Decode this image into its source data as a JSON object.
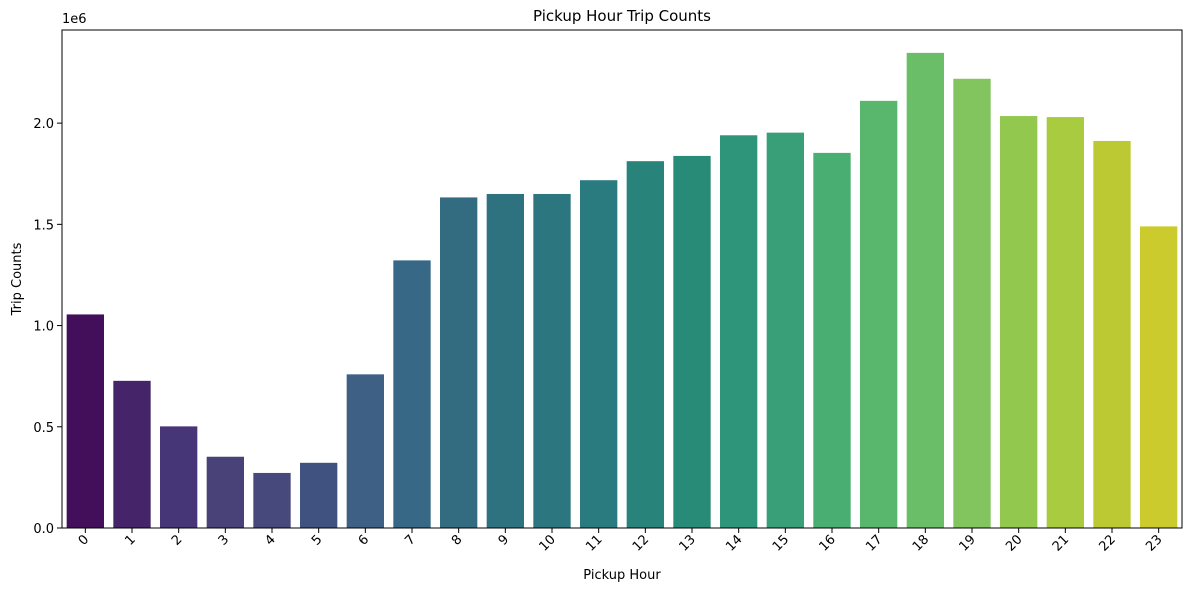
{
  "chart_data": {
    "type": "bar",
    "title": "Pickup Hour Trip Counts",
    "xlabel": "Pickup Hour",
    "ylabel": "Trip Counts",
    "y_offset_label": "1e6",
    "ylim": [
      0,
      2.46
    ],
    "yticks": [
      "0.0",
      "0.5",
      "1.0",
      "1.5",
      "2.0"
    ],
    "ytick_values": [
      0,
      0.5,
      1.0,
      1.5,
      2.0
    ],
    "categories": [
      "0",
      "1",
      "2",
      "3",
      "4",
      "5",
      "6",
      "7",
      "8",
      "9",
      "10",
      "11",
      "12",
      "13",
      "14",
      "15",
      "16",
      "17",
      "18",
      "19",
      "20",
      "21",
      "22",
      "23"
    ],
    "values": [
      1.055,
      0.727,
      0.502,
      0.352,
      0.272,
      0.322,
      0.759,
      1.322,
      1.633,
      1.65,
      1.65,
      1.718,
      1.812,
      1.838,
      1.94,
      1.953,
      1.853,
      2.11,
      2.347,
      2.219,
      2.035,
      2.03,
      1.912,
      1.49
    ],
    "colors": [
      "#440f5a",
      "#46246a",
      "#463577",
      "#484279",
      "#47487b",
      "#40527f",
      "#3d6084",
      "#376886",
      "#336c80",
      "#2e727f",
      "#2b767f",
      "#297b7f",
      "#28837b",
      "#288b78",
      "#2f957a",
      "#389f79",
      "#48ae72",
      "#59b76d",
      "#6bbe68",
      "#82c55f",
      "#92c84e",
      "#a8cb3f",
      "#bcc932",
      "#cbcb2e"
    ],
    "grid": false,
    "legend": "none",
    "tick_rotation_deg": 45
  }
}
